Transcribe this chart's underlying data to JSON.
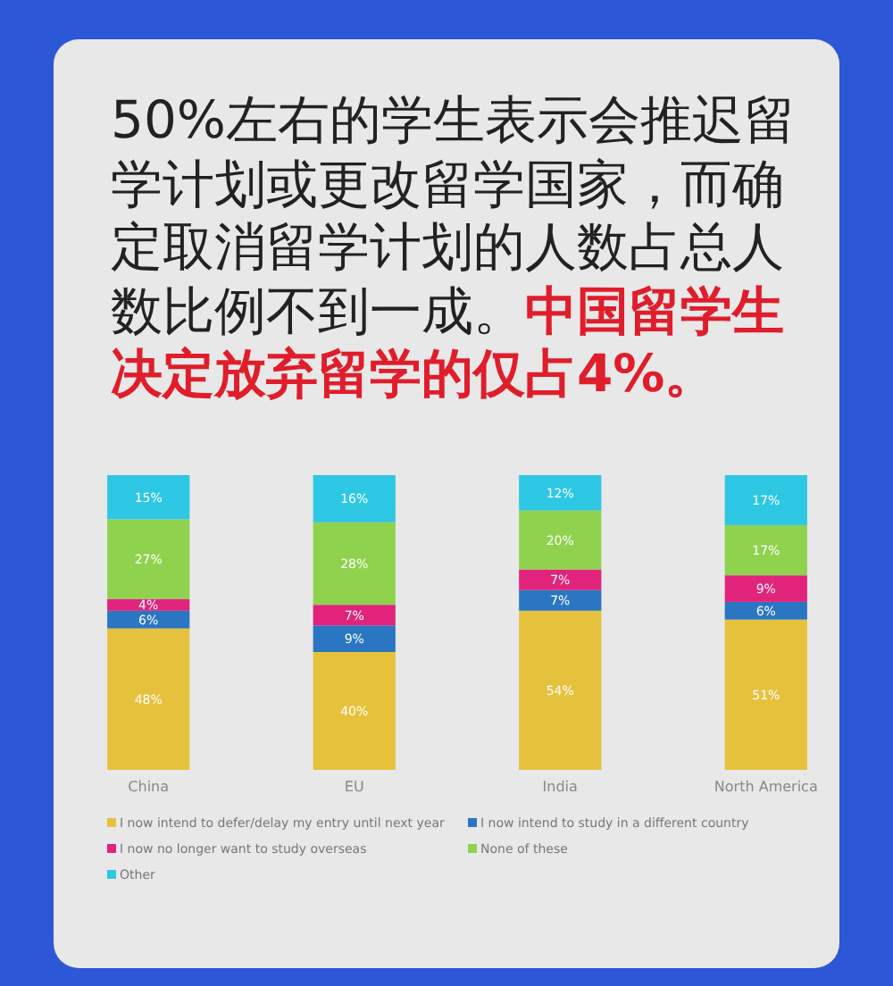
{
  "chart_data": {
    "type": "bar",
    "stacked": true,
    "title": "50%左右的学生表示会推迟留学计划或更改留学国家，而确定取消留学计划的人数占总人数比例不到一成。",
    "subtitle": "中国留学生决定放弃留学的仅占4%。",
    "categories": [
      "China",
      "EU",
      "India",
      "North America"
    ],
    "ylim": [
      0,
      100
    ],
    "legend": "bottom",
    "series": [
      {
        "name": "I now intend to defer/delay my entry until next year",
        "color": "#e6c13c",
        "values": [
          48,
          40,
          54,
          51
        ],
        "value_labels": [
          "48%",
          "40%",
          "54%",
          "51%"
        ]
      },
      {
        "name": "I now intend to study in a different country",
        "color": "#2a76c2",
        "values": [
          6,
          9,
          7,
          6
        ],
        "value_labels": [
          "6%",
          "9%",
          "7%",
          "6%"
        ]
      },
      {
        "name": "I now no longer want to study overseas",
        "color": "#e2237c",
        "values": [
          4,
          7,
          7,
          9
        ],
        "value_labels": [
          "4%",
          "7%",
          "7%",
          "9%"
        ]
      },
      {
        "name": "None of these",
        "color": "#8fd24e",
        "values": [
          27,
          28,
          20,
          17
        ],
        "value_labels": [
          "27%",
          "28%",
          "20%",
          "17%"
        ]
      },
      {
        "name": "Other",
        "color": "#2ec7e4",
        "values": [
          15,
          16,
          12,
          17
        ],
        "value_labels": [
          "15%",
          "16%",
          "12%",
          "17%"
        ]
      }
    ]
  }
}
